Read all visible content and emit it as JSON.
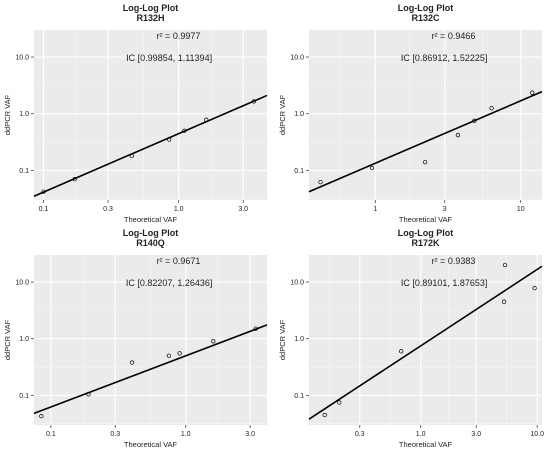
{
  "chart_data": [
    {
      "type": "scatter",
      "title": "Log-Log Plot",
      "subtitle": "R132H",
      "xlabel": "Theoretical VAF",
      "ylabel": "ddPCR VAF",
      "xscale": "log",
      "yscale": "log",
      "xlim": [
        0.085,
        4.5
      ],
      "ylim": [
        0.03,
        30
      ],
      "xticks": [
        0.1,
        0.3,
        1.0,
        3.0
      ],
      "xtick_labels": [
        "0.1",
        "0.3",
        "1.0",
        "3.0"
      ],
      "yticks": [
        0.1,
        1.0,
        10.0
      ],
      "ytick_labels": [
        "0.1",
        "1.0",
        "10.0"
      ],
      "r2_text": "r² = 0.9977",
      "ic_text": "IC  [0.99854, 1.11394]",
      "grid": true,
      "series": [
        {
          "x": [
            0.1,
            0.17,
            0.45,
            0.85,
            1.1,
            1.6,
            3.6
          ],
          "y": [
            0.042,
            0.07,
            0.18,
            0.35,
            0.5,
            0.78,
            1.65
          ]
        }
      ],
      "fit_line": {
        "x": [
          0.085,
          4.5
        ],
        "y": [
          0.035,
          2.1
        ]
      }
    },
    {
      "type": "scatter",
      "title": "Log-Log Plot",
      "subtitle": "R132C",
      "xlabel": "Theoretical VAF",
      "ylabel": "ddPCR VAF",
      "xscale": "log",
      "yscale": "log",
      "xlim": [
        0.35,
        14
      ],
      "ylim": [
        0.03,
        30
      ],
      "xticks": [
        1,
        3,
        10
      ],
      "xtick_labels": [
        "1",
        "3",
        "10"
      ],
      "yticks": [
        0.1,
        1.0,
        10.0
      ],
      "ytick_labels": [
        "0.1",
        "1.0",
        "10.0"
      ],
      "r2_text": "r² = 0.9466",
      "ic_text": "IC  [0.86912, 1.52225]",
      "grid": true,
      "series": [
        {
          "x": [
            0.42,
            0.95,
            2.2,
            3.7,
            4.8,
            6.3,
            12.0
          ],
          "y": [
            0.062,
            0.11,
            0.14,
            0.42,
            0.75,
            1.25,
            2.35
          ]
        }
      ],
      "fit_line": {
        "x": [
          0.35,
          14
        ],
        "y": [
          0.042,
          2.45
        ]
      }
    },
    {
      "type": "scatter",
      "title": "Log-Log Plot",
      "subtitle": "R140Q",
      "xlabel": "Theoretical VAF",
      "ylabel": "ddPCR VAF",
      "xscale": "log",
      "yscale": "log",
      "xlim": [
        0.075,
        4.0
      ],
      "ylim": [
        0.03,
        30
      ],
      "xticks": [
        0.1,
        0.3,
        1.0,
        3.0
      ],
      "xtick_labels": [
        "0.1",
        "0.3",
        "1.0",
        "3.0"
      ],
      "yticks": [
        0.1,
        1.0,
        10.0
      ],
      "ytick_labels": [
        "0.1",
        "1.0",
        "10.0"
      ],
      "r2_text": "r² = 0.9671",
      "ic_text": "IC  [0.82207, 1.26436]",
      "grid": true,
      "series": [
        {
          "x": [
            0.085,
            0.19,
            0.4,
            0.75,
            0.9,
            1.6,
            3.3
          ],
          "y": [
            0.043,
            0.105,
            0.38,
            0.5,
            0.55,
            0.9,
            1.5
          ]
        }
      ],
      "fit_line": {
        "x": [
          0.075,
          4.0
        ],
        "y": [
          0.048,
          1.75
        ]
      }
    },
    {
      "type": "scatter",
      "title": "Log-Log Plot",
      "subtitle": "R172K",
      "xlabel": "Theoretical VAF",
      "ylabel": "ddPCR VAF",
      "xscale": "log",
      "yscale": "log",
      "xlim": [
        0.11,
        11
      ],
      "ylim": [
        0.03,
        30
      ],
      "xticks": [
        0.3,
        1.0,
        3.0,
        10.0
      ],
      "xtick_labels": [
        "0.3",
        "1.0",
        "3.0",
        "10.0"
      ],
      "yticks": [
        0.1,
        1.0,
        10.0
      ],
      "ytick_labels": [
        "0.1",
        "1.0",
        "10.0"
      ],
      "r2_text": "r² = 0.9383",
      "ic_text": "IC  [0.89101, 1.87653]",
      "grid": true,
      "series": [
        {
          "x": [
            0.15,
            0.2,
            0.68,
            5.2,
            5.3,
            9.5
          ],
          "y": [
            0.045,
            0.075,
            0.6,
            4.5,
            20.0,
            7.8
          ]
        }
      ],
      "fit_line": {
        "x": [
          0.11,
          11
        ],
        "y": [
          0.038,
          19.0
        ]
      }
    }
  ]
}
